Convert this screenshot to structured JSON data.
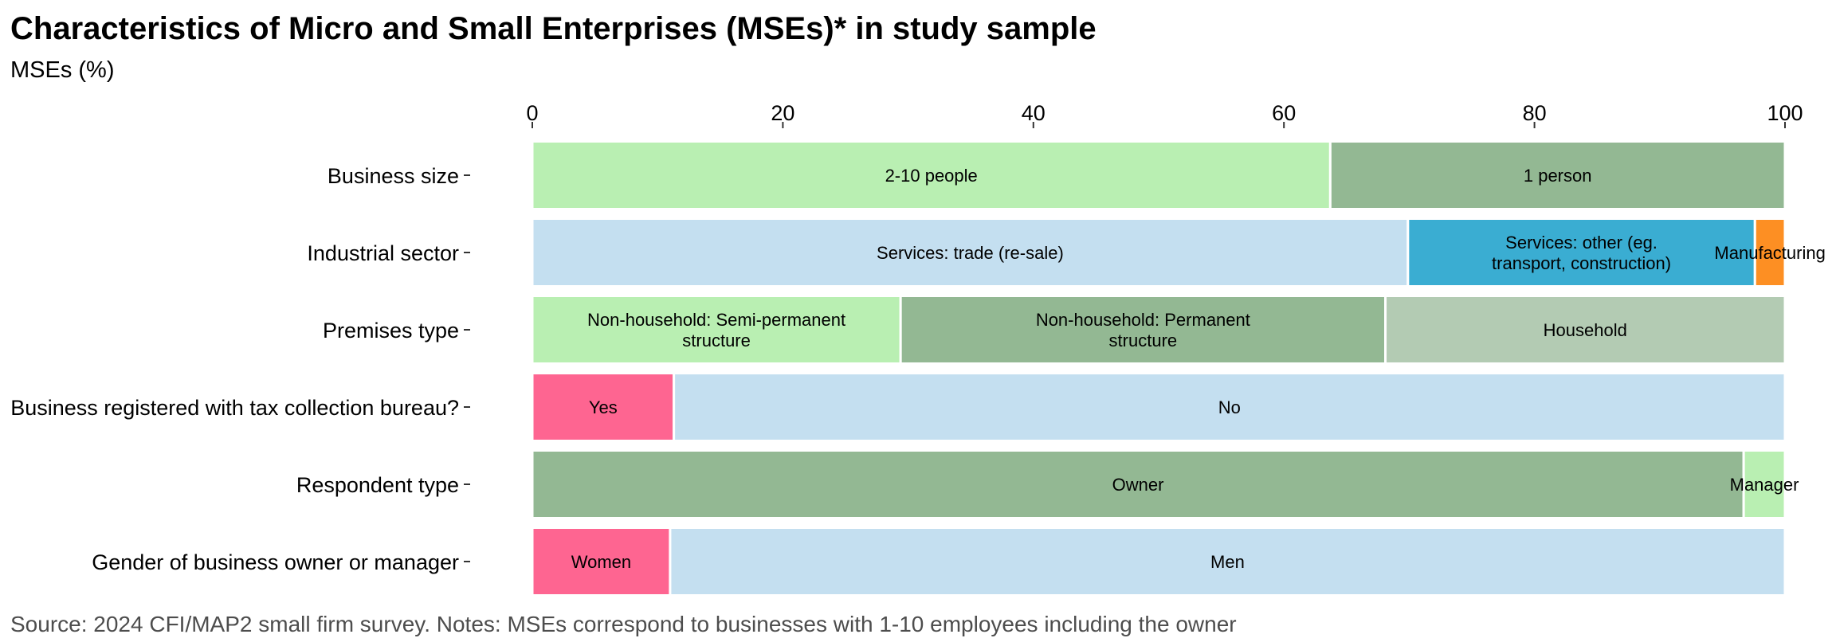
{
  "chart_data": {
    "type": "bar",
    "orientation": "horizontal-stacked-100",
    "title": "Characteristics of Micro and Small Enterprises (MSEs)* in study sample",
    "subtitle": "MSEs (%)",
    "caption": "Source: 2024 CFI/MAP2 small firm survey. Notes: MSEs correspond to businesses with 1-10 employees including the owner",
    "xlim": [
      0,
      100
    ],
    "x_ticks": [
      0,
      20,
      40,
      60,
      80,
      100
    ],
    "x_axis_position": "top",
    "grid": false,
    "legend": "none",
    "categories": [
      {
        "label": "Business size",
        "segments": [
          {
            "label": "2-10 people",
            "value": 63.7,
            "color": "#b9efb2"
          },
          {
            "label": "1 person",
            "value": 36.3,
            "color": "#93b893"
          }
        ]
      },
      {
        "label": "Industrial sector",
        "segments": [
          {
            "label": "Services: trade (re-sale)",
            "value": 69.9,
            "color": "#c4dff0"
          },
          {
            "label": "Services: other (eg.\ntransport, construction)",
            "value": 27.7,
            "color": "#3aadd2"
          },
          {
            "label": "Manufacturing",
            "value": 2.4,
            "color": "#fd8f23"
          }
        ]
      },
      {
        "label": "Premises type",
        "segments": [
          {
            "label": "Non-household: Semi-permanent\nstructure",
            "value": 29.4,
            "color": "#b9efb2"
          },
          {
            "label": "Non-household: Permanent\nstructure",
            "value": 38.7,
            "color": "#93b893"
          },
          {
            "label": "Household",
            "value": 31.9,
            "color": "#b3cbb3"
          }
        ]
      },
      {
        "label": "Business registered with tax collection bureau?",
        "segments": [
          {
            "label": "Yes",
            "value": 11.3,
            "color": "#fe6591"
          },
          {
            "label": "No",
            "value": 88.7,
            "color": "#c4dff0"
          }
        ]
      },
      {
        "label": "Respondent type",
        "segments": [
          {
            "label": "Owner",
            "value": 96.7,
            "color": "#93b893"
          },
          {
            "label": "Manager",
            "value": 3.3,
            "color": "#b9efb2"
          }
        ]
      },
      {
        "label": "Gender of business owner or manager",
        "segments": [
          {
            "label": "Women",
            "value": 11.0,
            "color": "#fe6591"
          },
          {
            "label": "Men",
            "value": 89.0,
            "color": "#c4dff0"
          }
        ]
      }
    ]
  }
}
